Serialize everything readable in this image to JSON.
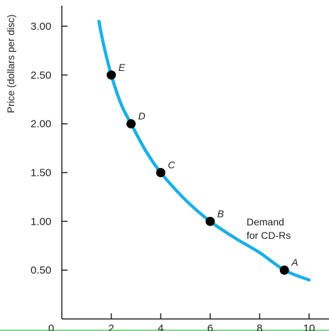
{
  "chart_data": {
    "type": "line",
    "title": "",
    "xlabel": "",
    "ylabel": "Price (dollars per disc)",
    "xlim": [
      0,
      10
    ],
    "ylim": [
      0,
      3.25
    ],
    "x_ticks": [
      0,
      2,
      4,
      6,
      8,
      10
    ],
    "y_ticks": [
      0.5,
      1.0,
      1.5,
      2.0,
      2.5,
      3.0
    ],
    "y_tick_labels": [
      "0.50",
      "1.00",
      "1.50",
      "2.00",
      "2.50",
      "3.00"
    ],
    "x_tick_labels": [
      "0",
      "2",
      "4",
      "6",
      "8",
      "10"
    ],
    "grid": false,
    "curve_label": [
      "Demand",
      "for CD-Rs"
    ],
    "series": [
      {
        "color": "#1cb0e4",
        "x": [
          1.5,
          1.7,
          2.0,
          2.4,
          2.8,
          3.4,
          4.0,
          5.0,
          6.0,
          7.0,
          8.0,
          9.0,
          10.0
        ],
        "y": [
          3.05,
          2.8,
          2.5,
          2.2,
          2.0,
          1.72,
          1.5,
          1.22,
          1.0,
          0.83,
          0.68,
          0.5,
          0.4
        ]
      }
    ],
    "points": [
      {
        "label": "A",
        "x": 9.0,
        "y": 0.5
      },
      {
        "label": "B",
        "x": 6.0,
        "y": 1.0
      },
      {
        "label": "C",
        "x": 4.0,
        "y": 1.5
      },
      {
        "label": "D",
        "x": 2.8,
        "y": 2.0
      },
      {
        "label": "E",
        "x": 2.0,
        "y": 2.5
      }
    ],
    "colors": {
      "curve": "#1cb0e4",
      "points": "#000000",
      "axis": "#222222",
      "bottom_line": "#7fd88c"
    }
  }
}
